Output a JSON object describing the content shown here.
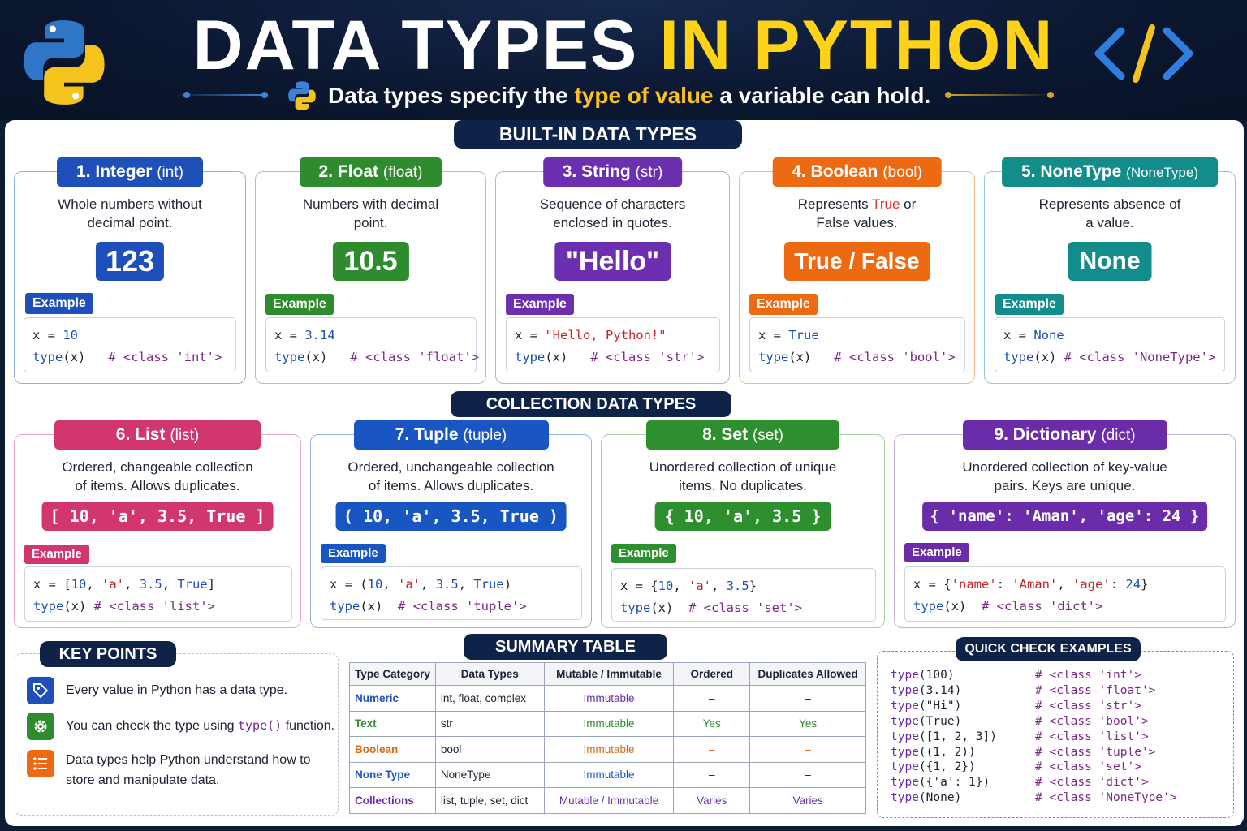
{
  "header": {
    "title_main": "DATA TYPES ",
    "title_hl": "IN PYTHON",
    "subtitle_pre": "Data types specify the ",
    "subtitle_hl": "type of value",
    "subtitle_post": " a variable can hold."
  },
  "colors": {
    "int": "#1f4fb8",
    "float": "#2e8b2e",
    "str": "#6b2fb0",
    "bool": "#ee6a12",
    "none": "#138c8c",
    "list": "#d1366e",
    "tuple": "#1a56c2",
    "set": "#2e8f2e",
    "dict": "#6a2ca8",
    "navy": "#0f2247"
  },
  "sections": {
    "builtin": "BUILT-IN DATA TYPES",
    "collection": "COLLECTION DATA TYPES",
    "key_points": "KEY POINTS",
    "summary": "SUMMARY TABLE",
    "quick": "QUICK CHECK EXAMPLES"
  },
  "example_label": "Example",
  "cards": [
    {
      "title": "1. Integer ",
      "title_small": "(int)",
      "desc1": "Whole numbers without",
      "desc2": "decimal point.",
      "value": "123",
      "code": [
        "x = ",
        "10",
        "type",
        "(x)   ",
        "# <class 'int'>"
      ]
    },
    {
      "title": "2. Float ",
      "title_small": "(float)",
      "desc1": "Numbers with decimal",
      "desc2": "point.",
      "value": "10.5",
      "code": [
        "x = ",
        "3.14",
        "type",
        "(x)   ",
        "# <class 'float'>"
      ]
    },
    {
      "title": "3. String ",
      "title_small": "(str)",
      "desc1": "Sequence of characters",
      "desc2": "enclosed in quotes.",
      "value": "\"Hello\"",
      "code": [
        "x = ",
        "\"Hello, Python!\"",
        "type",
        "(x)   ",
        "# <class 'str'>"
      ]
    },
    {
      "title": "4. Boolean ",
      "title_small": "(bool)",
      "desc1_pre": "Represents ",
      "desc1_red": "True",
      "desc1_post": " or",
      "desc2": "False values.",
      "value": "True / False",
      "code": [
        "x = ",
        "True",
        "type",
        "(x)   ",
        "# <class 'bool'>"
      ]
    },
    {
      "title": "5. NoneType ",
      "title_small": "(NoneType)",
      "desc1": "Represents absence of",
      "desc2": "a value.",
      "value": "None",
      "code": [
        "x = ",
        "None",
        "type",
        "(x) ",
        "# <class 'NoneType'>"
      ]
    },
    {
      "title": "6. List ",
      "title_small": "(list)",
      "desc1": "Ordered, changeable collection",
      "desc2": "of items. Allows duplicates.",
      "value": "[ 10, 'a', 3.5, True ]",
      "code": [
        "x = [",
        "10",
        ", ",
        "'a'",
        ", ",
        "3.5",
        ", ",
        "True",
        "]",
        "type",
        "(x) ",
        "# <class 'list'>"
      ]
    },
    {
      "title": "7. Tuple ",
      "title_small": "(tuple)",
      "desc1": "Ordered, unchangeable collection",
      "desc2": "of items. Allows duplicates.",
      "value": "( 10, 'a', 3.5, True )",
      "code": [
        "x = (",
        "10",
        ", ",
        "'a'",
        ", ",
        "3.5",
        ", ",
        "True",
        ")",
        "type",
        "(x)  ",
        "# <class 'tuple'>"
      ]
    },
    {
      "title": "8. Set ",
      "title_small": "(set)",
      "desc1": "Unordered collection of unique",
      "desc2": "items. No duplicates.",
      "value": "{ 10, 'a', 3.5 }",
      "code": [
        "x = {",
        "10",
        ", ",
        "'a'",
        ", ",
        "3.5",
        "",
        "",
        "}",
        "type",
        "(x)  ",
        "# <class 'set'>"
      ]
    },
    {
      "title": "9. Dictionary ",
      "title_small": "(dict)",
      "desc1": "Unordered collection of key-value",
      "desc2": "pairs. Keys are unique.",
      "value": "{ 'name': 'Aman', 'age': 24 }",
      "code": [
        "x = {",
        "'name'",
        ": ",
        "'Aman'",
        ", ",
        "'age'",
        ": ",
        "24",
        "}",
        "type",
        "(x)  ",
        "# <class 'dict'>"
      ]
    }
  ],
  "key_points": [
    {
      "text": "Every value in Python has a data type."
    },
    {
      "pre": "You can check the type using ",
      "fn": "type()",
      "post": " function."
    },
    {
      "line1": "Data types help Python understand how to",
      "line2": "store and manipulate data."
    }
  ],
  "summary": {
    "headers": [
      "Type Category",
      "Data Types",
      "Mutable / Immutable",
      "Ordered",
      "Duplicates Allowed"
    ],
    "rows": [
      {
        "cat": "Numeric",
        "types": "int, float, complex",
        "mut": "Immutable",
        "ord": "–",
        "dup": "–",
        "color": "#1f4fb8",
        "mutcolor": "#6a2ca8",
        "oc": "#1c2232"
      },
      {
        "cat": "Text",
        "types": "str",
        "mut": "Immutable",
        "ord": "Yes",
        "dup": "Yes",
        "color": "#2e8b2e",
        "mutcolor": "#2e8b2e",
        "oc": "#2e8b2e"
      },
      {
        "cat": "Boolean",
        "types": "bool",
        "mut": "Immutable",
        "ord": "–",
        "dup": "–",
        "color": "#d46a12",
        "mutcolor": "#d46a12",
        "oc": "#d46a12"
      },
      {
        "cat": "None Type",
        "types": "NoneType",
        "mut": "Immutable",
        "ord": "–",
        "dup": "–",
        "color": "#1a56c2",
        "mutcolor": "#1a56c2",
        "oc": "#1c2232"
      },
      {
        "cat": "Collections",
        "types": "list, tuple, set, dict",
        "mut": "Mutable / Immutable",
        "ord": "Varies",
        "dup": "Varies",
        "color": "#6a2ca8",
        "mutcolor": "#6a2ca8",
        "oc": "#6a2ca8"
      }
    ]
  },
  "quick_check": [
    {
      "fn": "type",
      "arg": "(100)",
      "out": "# <class 'int'>"
    },
    {
      "fn": "type",
      "arg": "(3.14)",
      "out": "# <class 'float'>"
    },
    {
      "fn": "type",
      "arg": "(\"Hi\")",
      "out": "# <class 'str'>"
    },
    {
      "fn": "type",
      "arg": "(True)",
      "out": "# <class 'bool'>"
    },
    {
      "fn": "type",
      "arg": "([1, 2, 3])",
      "out": "# <class 'list'>"
    },
    {
      "fn": "type",
      "arg": "((1, 2))",
      "out": "# <class 'tuple'>"
    },
    {
      "fn": "type",
      "arg": "({1, 2})",
      "out": "# <class 'set'>"
    },
    {
      "fn": "type",
      "arg": "({'a': 1})",
      "out": "# <class 'dict'>"
    },
    {
      "fn": "type",
      "arg": "(None)",
      "out": "# <class 'NoneType'>"
    }
  ]
}
